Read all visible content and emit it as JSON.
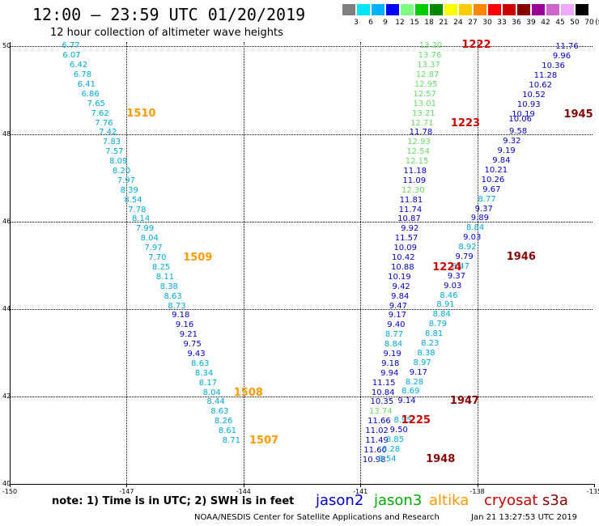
{
  "title": "12:00 — 23:59 UTC 01/20/2019",
  "subtitle": "12 hour collection of altimeter wave heights",
  "legend": {
    "unit": "(ft)",
    "bins": [
      {
        "label": "3",
        "color": "#7f7f7f"
      },
      {
        "label": "6",
        "color": "#00e5ff"
      },
      {
        "label": "9",
        "color": "#00b2ff"
      },
      {
        "label": "12",
        "color": "#0000ff"
      },
      {
        "label": "15",
        "color": "#7fff7f"
      },
      {
        "label": "18",
        "color": "#00cc00"
      },
      {
        "label": "21",
        "color": "#008800"
      },
      {
        "label": "24",
        "color": "#ffff00"
      },
      {
        "label": "27",
        "color": "#ffcc00"
      },
      {
        "label": "30",
        "color": "#ff8800"
      },
      {
        "label": "33",
        "color": "#ff0000"
      },
      {
        "label": "36",
        "color": "#cc0000"
      },
      {
        "label": "39",
        "color": "#880000"
      },
      {
        "label": "42",
        "color": "#990099"
      },
      {
        "label": "45",
        "color": "#cc66cc"
      },
      {
        "label": "50",
        "color": "#eeaaff"
      },
      {
        "label": "70",
        "color": "#000000"
      }
    ]
  },
  "axes": {
    "x_ticks": [
      {
        "label": "-150",
        "lon": -150
      },
      {
        "label": "-147",
        "lon": -147
      },
      {
        "label": "-144",
        "lon": -144
      },
      {
        "label": "-141",
        "lon": -141
      },
      {
        "label": "-138",
        "lon": -138
      },
      {
        "label": "-135",
        "lon": -135
      }
    ],
    "y_ticks": [
      {
        "label": "50",
        "lat": 50
      },
      {
        "label": "48",
        "lat": 48
      },
      {
        "label": "46",
        "lat": 46
      },
      {
        "label": "44",
        "lat": 44
      },
      {
        "label": "42",
        "lat": 42
      },
      {
        "label": "40",
        "lat": 40
      }
    ],
    "x_range": [
      -150,
      -135
    ],
    "y_range": [
      40,
      50.1
    ]
  },
  "colors": {
    "jason2": "#0000cc",
    "jason3": "#00aa00",
    "altika": "#ff9900",
    "cryosat": "#cc0000",
    "s3a": "#880000",
    "cyan": "#00aadd",
    "lightgreen": "#66dd66"
  },
  "tracks": [
    {
      "id": "t1",
      "points": [
        {
          "v": "6.77",
          "lon": -148.2,
          "lat": 50.0,
          "c": "cyan"
        },
        {
          "v": "6.07",
          "lon": -148.18,
          "lat": 49.78,
          "c": "cyan"
        },
        {
          "v": "6.42",
          "lon": -148.0,
          "lat": 49.56,
          "c": "cyan"
        },
        {
          "v": "6.78",
          "lon": -147.9,
          "lat": 49.34,
          "c": "cyan"
        },
        {
          "v": "6.41",
          "lon": -147.8,
          "lat": 49.12,
          "c": "cyan"
        },
        {
          "v": "6.86",
          "lon": -147.7,
          "lat": 48.9,
          "c": "cyan"
        },
        {
          "v": "7.65",
          "lon": -147.55,
          "lat": 48.68,
          "c": "cyan"
        },
        {
          "v": "7.62",
          "lon": -147.45,
          "lat": 48.46,
          "c": "cyan"
        },
        {
          "v": "7.76",
          "lon": -147.35,
          "lat": 48.24,
          "c": "cyan"
        },
        {
          "v": "7.42",
          "lon": -147.25,
          "lat": 48.02,
          "c": "cyan"
        },
        {
          "v": "7.83",
          "lon": -147.15,
          "lat": 47.8,
          "c": "cyan"
        },
        {
          "v": "7.57",
          "lon": -147.08,
          "lat": 47.58,
          "c": "cyan"
        },
        {
          "v": "8.09",
          "lon": -146.98,
          "lat": 47.36,
          "c": "cyan"
        },
        {
          "v": "8.20",
          "lon": -146.9,
          "lat": 47.14,
          "c": "cyan"
        },
        {
          "v": "7.97",
          "lon": -146.78,
          "lat": 46.92,
          "c": "cyan"
        },
        {
          "v": "8.39",
          "lon": -146.7,
          "lat": 46.7,
          "c": "cyan"
        },
        {
          "v": "8.54",
          "lon": -146.6,
          "lat": 46.48,
          "c": "cyan"
        },
        {
          "v": "7.78",
          "lon": -146.5,
          "lat": 46.26,
          "c": "cyan"
        },
        {
          "v": "8.14",
          "lon": -146.4,
          "lat": 46.04,
          "c": "cyan"
        },
        {
          "v": "7.99",
          "lon": -146.3,
          "lat": 45.82,
          "c": "cyan"
        },
        {
          "v": "8.04",
          "lon": -146.18,
          "lat": 45.6,
          "c": "cyan"
        },
        {
          "v": "7.97",
          "lon": -146.08,
          "lat": 45.38,
          "c": "cyan"
        },
        {
          "v": "7.70",
          "lon": -145.98,
          "lat": 45.16,
          "c": "cyan"
        },
        {
          "v": "8.25",
          "lon": -145.88,
          "lat": 44.94,
          "c": "cyan"
        },
        {
          "v": "8.11",
          "lon": -145.78,
          "lat": 44.72,
          "c": "cyan"
        },
        {
          "v": "8.38",
          "lon": -145.68,
          "lat": 44.5,
          "c": "cyan"
        },
        {
          "v": "8.63",
          "lon": -145.58,
          "lat": 44.28,
          "c": "cyan"
        },
        {
          "v": "8.73",
          "lon": -145.48,
          "lat": 44.06,
          "c": "cyan"
        },
        {
          "v": "9.18",
          "lon": -145.38,
          "lat": 43.84,
          "c": "jason2"
        },
        {
          "v": "9.16",
          "lon": -145.28,
          "lat": 43.62,
          "c": "jason2"
        },
        {
          "v": "9.21",
          "lon": -145.18,
          "lat": 43.4,
          "c": "jason2"
        },
        {
          "v": "9.75",
          "lon": -145.08,
          "lat": 43.18,
          "c": "jason2"
        },
        {
          "v": "9.43",
          "lon": -144.98,
          "lat": 42.96,
          "c": "jason2"
        },
        {
          "v": "8.63",
          "lon": -144.88,
          "lat": 42.74,
          "c": "cyan"
        },
        {
          "v": "8.34",
          "lon": -144.78,
          "lat": 42.52,
          "c": "cyan"
        },
        {
          "v": "8.17",
          "lon": -144.68,
          "lat": 42.3,
          "c": "cyan"
        },
        {
          "v": "8.04",
          "lon": -144.58,
          "lat": 42.08,
          "c": "cyan"
        },
        {
          "v": "8.44",
          "lon": -144.48,
          "lat": 41.86,
          "c": "cyan"
        },
        {
          "v": "8.63",
          "lon": -144.38,
          "lat": 41.64,
          "c": "cyan"
        },
        {
          "v": "8.26",
          "lon": -144.28,
          "lat": 41.42,
          "c": "cyan"
        },
        {
          "v": "8.61",
          "lon": -144.18,
          "lat": 41.2,
          "c": "cyan"
        },
        {
          "v": "8.71",
          "lon": -144.08,
          "lat": 40.98,
          "c": "cyan"
        }
      ]
    },
    {
      "id": "t2",
      "points": [
        {
          "v": "13.20",
          "lon": -138.9,
          "lat": 50.0,
          "c": "lightgreen"
        },
        {
          "v": "13.76",
          "lon": -138.92,
          "lat": 49.78,
          "c": "lightgreen"
        },
        {
          "v": "13.37",
          "lon": -138.95,
          "lat": 49.56,
          "c": "lightgreen"
        },
        {
          "v": "12.87",
          "lon": -138.98,
          "lat": 49.34,
          "c": "lightgreen"
        },
        {
          "v": "12.95",
          "lon": -139.02,
          "lat": 49.12,
          "c": "lightgreen"
        },
        {
          "v": "12.57",
          "lon": -139.05,
          "lat": 48.9,
          "c": "lightgreen"
        },
        {
          "v": "13.01",
          "lon": -139.05,
          "lat": 48.68,
          "c": "lightgreen"
        },
        {
          "v": "13.21",
          "lon": -139.08,
          "lat": 48.46,
          "c": "lightgreen"
        },
        {
          "v": "12.71",
          "lon": -139.12,
          "lat": 48.24,
          "c": "lightgreen"
        },
        {
          "v": "11.78",
          "lon": -139.15,
          "lat": 48.02,
          "c": "jason2"
        },
        {
          "v": "12.93",
          "lon": -139.2,
          "lat": 47.8,
          "c": "lightgreen"
        },
        {
          "v": "12.54",
          "lon": -139.22,
          "lat": 47.58,
          "c": "lightgreen"
        },
        {
          "v": "12.15",
          "lon": -139.25,
          "lat": 47.36,
          "c": "lightgreen"
        },
        {
          "v": "11.18",
          "lon": -139.3,
          "lat": 47.14,
          "c": "jason2"
        },
        {
          "v": "11.09",
          "lon": -139.32,
          "lat": 46.92,
          "c": "jason2"
        },
        {
          "v": "12.30",
          "lon": -139.35,
          "lat": 46.7,
          "c": "lightgreen"
        },
        {
          "v": "11.81",
          "lon": -139.4,
          "lat": 46.48,
          "c": "jason2"
        },
        {
          "v": "11.74",
          "lon": -139.42,
          "lat": 46.26,
          "c": "jason2"
        },
        {
          "v": "10.87",
          "lon": -139.45,
          "lat": 46.04,
          "c": "jason2"
        },
        {
          "v": "9.92",
          "lon": -139.5,
          "lat": 45.82,
          "c": "jason2"
        },
        {
          "v": "11.57",
          "lon": -139.52,
          "lat": 45.6,
          "c": "jason2"
        },
        {
          "v": "10.09",
          "lon": -139.55,
          "lat": 45.38,
          "c": "jason2"
        },
        {
          "v": "10.42",
          "lon": -139.6,
          "lat": 45.16,
          "c": "jason2"
        },
        {
          "v": "10.88",
          "lon": -139.62,
          "lat": 44.94,
          "c": "jason2"
        },
        {
          "v": "10.19",
          "lon": -139.7,
          "lat": 44.72,
          "c": "jason2"
        },
        {
          "v": "9.42",
          "lon": -139.72,
          "lat": 44.5,
          "c": "jason2"
        },
        {
          "v": "9.84",
          "lon": -139.75,
          "lat": 44.28,
          "c": "jason2"
        },
        {
          "v": "9.47",
          "lon": -139.8,
          "lat": 44.06,
          "c": "jason2"
        },
        {
          "v": "9.17",
          "lon": -139.82,
          "lat": 43.84,
          "c": "jason2"
        },
        {
          "v": "9.40",
          "lon": -139.85,
          "lat": 43.62,
          "c": "jason2"
        },
        {
          "v": "8.77",
          "lon": -139.9,
          "lat": 43.4,
          "c": "cyan"
        },
        {
          "v": "8.84",
          "lon": -139.92,
          "lat": 43.18,
          "c": "cyan"
        },
        {
          "v": "9.19",
          "lon": -139.95,
          "lat": 42.96,
          "c": "jason2"
        },
        {
          "v": "9.18",
          "lon": -140.0,
          "lat": 42.74,
          "c": "jason2"
        },
        {
          "v": "9.94",
          "lon": -140.02,
          "lat": 42.52,
          "c": "jason2"
        },
        {
          "v": "11.15",
          "lon": -140.1,
          "lat": 42.3,
          "c": "jason2"
        },
        {
          "v": "10.84",
          "lon": -140.12,
          "lat": 42.08,
          "c": "jason2"
        },
        {
          "v": "10.35",
          "lon": -140.15,
          "lat": 41.86,
          "c": "jason2"
        },
        {
          "v": "13.74",
          "lon": -140.18,
          "lat": 41.64,
          "c": "lightgreen"
        },
        {
          "v": "11.66",
          "lon": -140.22,
          "lat": 41.42,
          "c": "jason2"
        },
        {
          "v": "11.02",
          "lon": -140.28,
          "lat": 41.2,
          "c": "jason2"
        },
        {
          "v": "11.49",
          "lon": -140.28,
          "lat": 40.98,
          "c": "jason2"
        },
        {
          "v": "11.60",
          "lon": -140.32,
          "lat": 40.76,
          "c": "jason2"
        },
        {
          "v": "10.98",
          "lon": -140.35,
          "lat": 40.54,
          "c": "jason2"
        }
      ]
    },
    {
      "id": "t3",
      "points": [
        {
          "v": "11.76",
          "lon": -135.4,
          "lat": 49.98,
          "c": "jason2"
        },
        {
          "v": "9.96",
          "lon": -135.6,
          "lat": 49.76,
          "c": "jason2"
        },
        {
          "v": "10.36",
          "lon": -135.75,
          "lat": 49.54,
          "c": "jason2"
        },
        {
          "v": "11.28",
          "lon": -135.95,
          "lat": 49.32,
          "c": "jason2"
        },
        {
          "v": "10.62",
          "lon": -136.08,
          "lat": 49.1,
          "c": "jason2"
        },
        {
          "v": "10.52",
          "lon": -136.25,
          "lat": 48.88,
          "c": "jason2"
        },
        {
          "v": "10.93",
          "lon": -136.38,
          "lat": 48.66,
          "c": "jason2"
        },
        {
          "v": "10.19",
          "lon": -136.52,
          "lat": 48.44,
          "c": "jason2"
        },
        {
          "v": "10.06",
          "lon": -136.6,
          "lat": 48.32,
          "c": "jason2"
        },
        {
          "v": "9.58",
          "lon": -136.72,
          "lat": 48.04,
          "c": "jason2"
        },
        {
          "v": "9.32",
          "lon": -136.88,
          "lat": 47.82,
          "c": "jason2"
        },
        {
          "v": "9.19",
          "lon": -137.02,
          "lat": 47.6,
          "c": "jason2"
        },
        {
          "v": "9.84",
          "lon": -137.15,
          "lat": 47.38,
          "c": "jason2"
        },
        {
          "v": "10.21",
          "lon": -137.22,
          "lat": 47.16,
          "c": "jason2"
        },
        {
          "v": "10.26",
          "lon": -137.3,
          "lat": 46.94,
          "c": "jason2"
        },
        {
          "v": "9.67",
          "lon": -137.4,
          "lat": 46.72,
          "c": "jason2"
        },
        {
          "v": "8.77",
          "lon": -137.52,
          "lat": 46.5,
          "c": "cyan"
        },
        {
          "v": "9.37",
          "lon": -137.6,
          "lat": 46.28,
          "c": "jason2"
        },
        {
          "v": "9.89",
          "lon": -137.7,
          "lat": 46.06,
          "c": "jason2"
        },
        {
          "v": "8.84",
          "lon": -137.82,
          "lat": 45.84,
          "c": "cyan"
        },
        {
          "v": "9.03",
          "lon": -137.9,
          "lat": 45.62,
          "c": "jason2"
        },
        {
          "v": "8.92",
          "lon": -138.02,
          "lat": 45.4,
          "c": "cyan"
        },
        {
          "v": "9.79",
          "lon": -138.1,
          "lat": 45.18,
          "c": "jason2"
        },
        {
          "v": "8.47",
          "lon": -138.2,
          "lat": 44.96,
          "c": "cyan"
        },
        {
          "v": "9.37",
          "lon": -138.3,
          "lat": 44.74,
          "c": "jason2"
        },
        {
          "v": "9.03",
          "lon": -138.4,
          "lat": 44.52,
          "c": "jason2"
        },
        {
          "v": "8.46",
          "lon": -138.5,
          "lat": 44.3,
          "c": "cyan"
        },
        {
          "v": "8.91",
          "lon": -138.58,
          "lat": 44.08,
          "c": "cyan"
        },
        {
          "v": "8.84",
          "lon": -138.68,
          "lat": 43.86,
          "c": "cyan"
        },
        {
          "v": "8.79",
          "lon": -138.78,
          "lat": 43.64,
          "c": "cyan"
        },
        {
          "v": "8.81",
          "lon": -138.88,
          "lat": 43.42,
          "c": "cyan"
        },
        {
          "v": "8.23",
          "lon": -138.98,
          "lat": 43.2,
          "c": "cyan"
        },
        {
          "v": "8.38",
          "lon": -139.08,
          "lat": 42.98,
          "c": "cyan"
        },
        {
          "v": "8.97",
          "lon": -139.18,
          "lat": 42.76,
          "c": "cyan"
        },
        {
          "v": "9.17",
          "lon": -139.28,
          "lat": 42.54,
          "c": "jason2"
        },
        {
          "v": "8.28",
          "lon": -139.38,
          "lat": 42.32,
          "c": "cyan"
        },
        {
          "v": "8.69",
          "lon": -139.48,
          "lat": 42.1,
          "c": "cyan"
        },
        {
          "v": "9.14",
          "lon": -139.58,
          "lat": 41.88,
          "c": "jason2"
        },
        {
          "v": "8.95",
          "lon": -139.68,
          "lat": 41.44,
          "c": "cyan"
        },
        {
          "v": "9.50",
          "lon": -139.78,
          "lat": 41.22,
          "c": "jason2"
        },
        {
          "v": "8.85",
          "lon": -139.88,
          "lat": 41.0,
          "c": "cyan"
        },
        {
          "v": "8.28",
          "lon": -139.98,
          "lat": 40.78,
          "c": "cyan"
        },
        {
          "v": "8.54",
          "lon": -140.08,
          "lat": 40.56,
          "c": "cyan"
        }
      ]
    }
  ],
  "time_labels": [
    {
      "v": "1510",
      "lon": -147.0,
      "lat": 48.46,
      "c": "altika"
    },
    {
      "v": "1509",
      "lon": -145.55,
      "lat": 45.16,
      "c": "altika"
    },
    {
      "v": "1508",
      "lon": -144.25,
      "lat": 42.08,
      "c": "altika"
    },
    {
      "v": "1507",
      "lon": -143.85,
      "lat": 40.98,
      "c": "altika"
    },
    {
      "v": "1222",
      "lon": -138.4,
      "lat": 50.02,
      "c": "cryosat"
    },
    {
      "v": "1223",
      "lon": -138.68,
      "lat": 48.24,
      "c": "cryosat"
    },
    {
      "v": "1224",
      "lon": -139.15,
      "lat": 44.94,
      "c": "cryosat"
    },
    {
      "v": "1225",
      "lon": -139.95,
      "lat": 41.44,
      "c": "cryosat"
    },
    {
      "v": "1945",
      "lon": -135.78,
      "lat": 48.44,
      "c": "s3a"
    },
    {
      "v": "1946",
      "lon": -137.25,
      "lat": 45.18,
      "c": "s3a"
    },
    {
      "v": "1947",
      "lon": -138.7,
      "lat": 41.88,
      "c": "s3a"
    },
    {
      "v": "1948",
      "lon": -139.32,
      "lat": 40.56,
      "c": "s3a"
    }
  ],
  "note": "note:  1) Time is in UTC;  2) SWH is in feet",
  "satellites": [
    {
      "label": "jason2",
      "c": "jason2"
    },
    {
      "label": "jason3",
      "c": "jason3"
    },
    {
      "label": "altika",
      "c": "altika"
    },
    {
      "label": "cryosat",
      "c": "cryosat"
    },
    {
      "label": "s3a",
      "c": "s3a"
    }
  ],
  "credit": "NOAA/NESDIS Center for Satellite Applications and Research",
  "generated": "Jan 21 13:27:53 UTC 2019"
}
